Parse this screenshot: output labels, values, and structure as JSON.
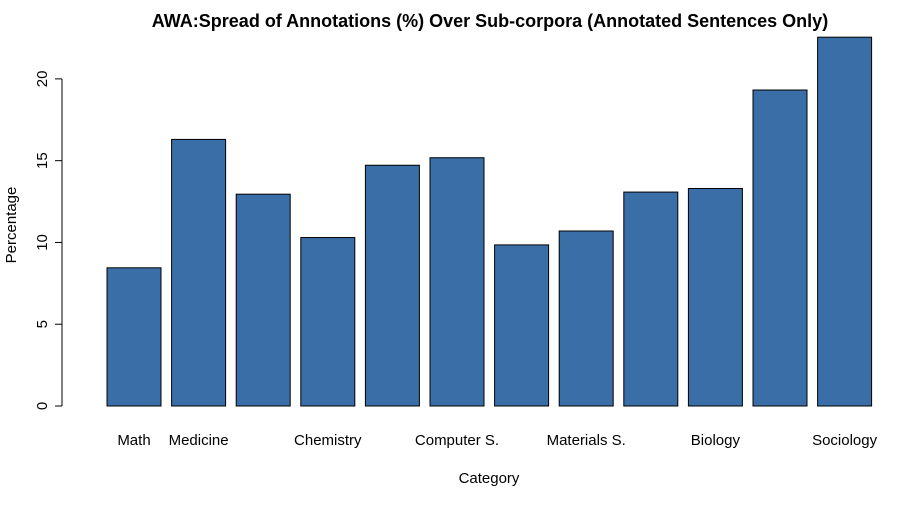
{
  "chart_data": {
    "type": "bar",
    "title": "AWA:Spread of Annotations (%) Over Sub-corpora (Annotated Sentences Only)",
    "xlabel": "Category",
    "ylabel": "Percentage",
    "ylim": [
      0,
      22.5
    ],
    "yticks": [
      0,
      5,
      10,
      15,
      20
    ],
    "categories": [
      "Math",
      "Medicine",
      "",
      "Chemistry",
      "",
      "Computer S.",
      "",
      "Materials S.",
      "",
      "Biology",
      "",
      "Sociology"
    ],
    "values": [
      8.45,
      16.3,
      12.95,
      10.3,
      14.72,
      15.18,
      9.85,
      10.7,
      13.08,
      13.3,
      19.32,
      22.55
    ],
    "bar_color": "#3a6ea7",
    "grid": false
  }
}
